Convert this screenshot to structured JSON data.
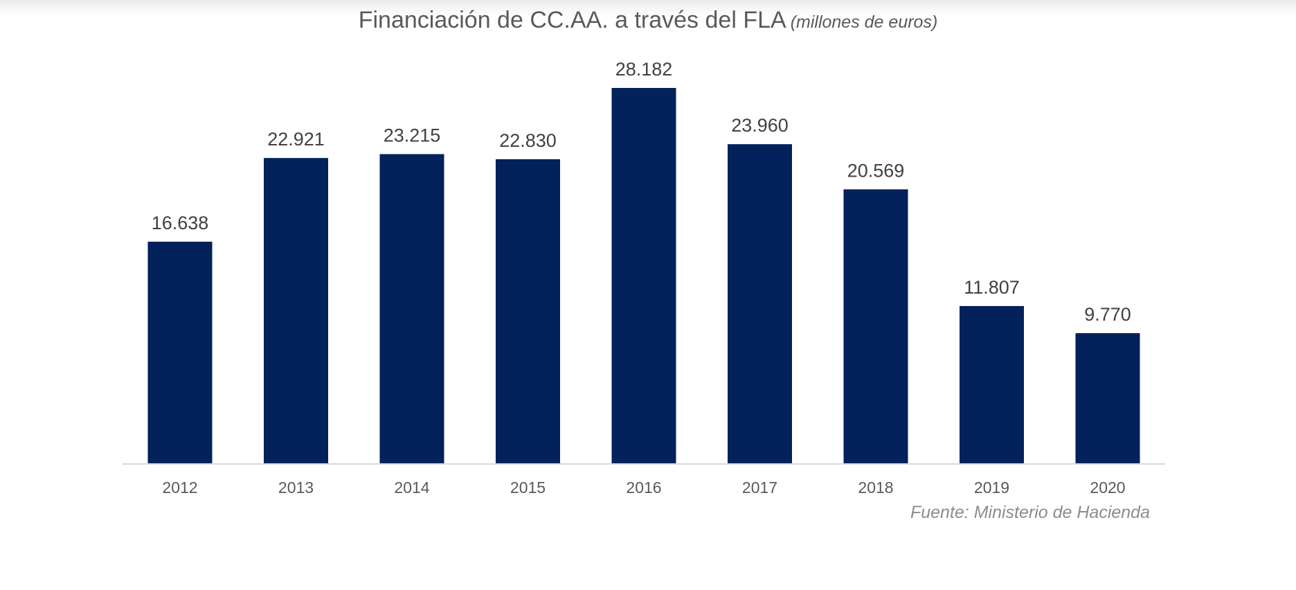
{
  "chart_data": {
    "type": "bar",
    "title": "Financiación de CC.AA. a través del FLA",
    "subtitle": "(millones de euros)",
    "xlabel": "",
    "ylabel": "",
    "categories": [
      "2012",
      "2013",
      "2014",
      "2015",
      "2016",
      "2017",
      "2018",
      "2019",
      "2020"
    ],
    "values": [
      16638,
      22921,
      23215,
      22830,
      28182,
      23960,
      20569,
      11807,
      9770
    ],
    "value_labels": [
      "16.638",
      "22.921",
      "23.215",
      "22.830",
      "28.182",
      "23.960",
      "20.569",
      "11.807",
      "9.770"
    ],
    "ylim": [
      0,
      28182
    ],
    "grid": false,
    "legend": "none",
    "bar_color": "#03215A",
    "axis_color": "#D9D9D9",
    "source": "Fuente: Ministerio de Hacienda"
  }
}
